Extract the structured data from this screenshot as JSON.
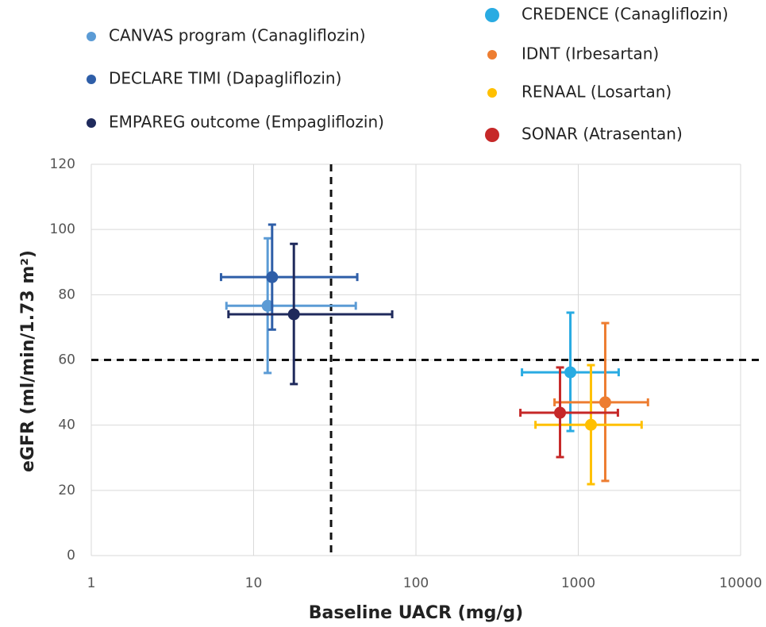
{
  "chart_data": {
    "type": "scatter",
    "xlabel": "Baseline UACR (mg/g)",
    "ylabel": "eGFR (ml/min/1.73 m²)",
    "xscale": "log",
    "grid": true,
    "xlim": [
      1,
      10000
    ],
    "xticks": [
      1,
      10,
      100,
      1000,
      10000
    ],
    "ylim": [
      0,
      120
    ],
    "yticks": [
      0,
      20,
      40,
      60,
      80,
      100,
      120
    ],
    "ref_lines": {
      "x": 30,
      "y": 60
    },
    "series": [
      {
        "name": "CANVAS program (Canagliflozin)",
        "color": "#5b9bd5",
        "x": [
          12.2
        ],
        "values": [
          76.6
        ],
        "x_low": [
          6.8
        ],
        "x_high": [
          42.6
        ],
        "y_low": [
          56
        ],
        "y_high": [
          97.3
        ]
      },
      {
        "name": "DECLARE TIMI (Dapagliflozin)",
        "color": "#2e5ea8",
        "x": [
          13
        ],
        "values": [
          85.4
        ],
        "x_low": [
          6.3
        ],
        "x_high": [
          43.5
        ],
        "y_low": [
          69.3
        ],
        "y_high": [
          101.5
        ]
      },
      {
        "name": "EMPAREG outcome (Empagliflozin)",
        "color": "#1f2a5c",
        "x": [
          17.7
        ],
        "values": [
          74
        ],
        "x_low": [
          7
        ],
        "x_high": [
          71.4
        ],
        "y_low": [
          52.6
        ],
        "y_high": [
          95.6
        ]
      },
      {
        "name": "CREDENCE (Canagliflozin)",
        "color": "#29abe2",
        "x": [
          894
        ],
        "values": [
          56.2
        ],
        "x_low": [
          450
        ],
        "x_high": [
          1774
        ],
        "y_low": [
          38.2
        ],
        "y_high": [
          74.5
        ]
      },
      {
        "name": "IDNT (Irbesartan)",
        "color": "#ed7d31",
        "x": [
          1466
        ],
        "values": [
          47
        ],
        "x_low": [
          714
        ],
        "x_high": [
          2687
        ],
        "y_low": [
          22.9
        ],
        "y_high": [
          71.3
        ]
      },
      {
        "name": "RENAAL (Losartan)",
        "color": "#ffc000",
        "x": [
          1197
        ],
        "values": [
          40.1
        ],
        "x_low": [
          545
        ],
        "x_high": [
          2456
        ],
        "y_low": [
          21.9
        ],
        "y_high": [
          58.4
        ]
      },
      {
        "name": "SONAR (Atrasentan)",
        "color": "#c62828",
        "x": [
          772
        ],
        "values": [
          43.8
        ],
        "x_low": [
          440
        ],
        "x_high": [
          1754
        ],
        "y_low": [
          30.2
        ],
        "y_high": [
          57.7
        ]
      }
    ]
  }
}
